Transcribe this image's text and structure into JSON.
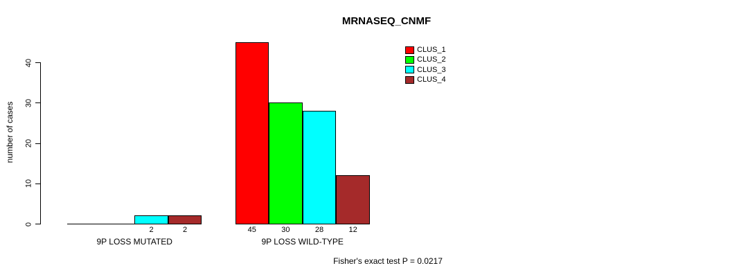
{
  "chart_data": {
    "type": "bar",
    "title": "MRNASEQ_CNMF",
    "ylabel": "number of cases",
    "xlabel": "",
    "ylim": [
      0,
      45
    ],
    "yticks": [
      0,
      10,
      20,
      30,
      40
    ],
    "grid": false,
    "legend_position": "top-right",
    "series": [
      {
        "name": "CLUS_1",
        "color": "#ff0000"
      },
      {
        "name": "CLUS_2",
        "color": "#00ff00"
      },
      {
        "name": "CLUS_3",
        "color": "#00ffff"
      },
      {
        "name": "CLUS_4",
        "color": "#a52a2a"
      }
    ],
    "groups": [
      {
        "label": "9P LOSS MUTATED",
        "values": [
          0,
          0,
          2,
          2
        ],
        "value_labels": [
          "",
          "",
          "2",
          "2"
        ]
      },
      {
        "label": "9P LOSS WILD-TYPE",
        "values": [
          45,
          30,
          28,
          12
        ],
        "value_labels": [
          "45",
          "30",
          "28",
          "12"
        ]
      }
    ],
    "annotation": "Fisher's exact test P = 0.0217"
  }
}
